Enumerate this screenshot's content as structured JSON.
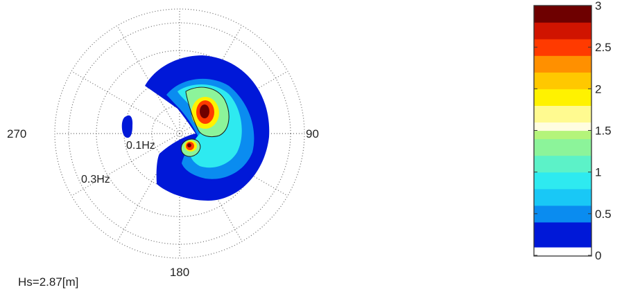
{
  "chart_data": {
    "type": "heatmap",
    "subtype": "polar directional wave spectrum",
    "direction_labels": [
      {
        "deg": 0,
        "text": ""
      },
      {
        "deg": 90,
        "text": "90"
      },
      {
        "deg": 180,
        "text": "180"
      },
      {
        "deg": 270,
        "text": "270"
      }
    ],
    "frequency_ring_labels": [
      {
        "freq": 0.1,
        "text": "0.1Hz"
      },
      {
        "freq": 0.3,
        "text": "0.3Hz"
      }
    ],
    "annotation": "Hs=2.87[m]",
    "grid": true,
    "colorbar": {
      "range": [
        0,
        3
      ],
      "tick_values": [
        0,
        0.5,
        1,
        1.5,
        2,
        2.5,
        3
      ],
      "tick_labels": [
        "0",
        "0.5",
        "1",
        "1.5",
        "2",
        "2.5",
        "3"
      ],
      "bands": [
        {
          "lo": 0.0,
          "hi": 0.1,
          "color": "#ffffff"
        },
        {
          "lo": 0.1,
          "hi": 0.4,
          "color": "#0018d8"
        },
        {
          "lo": 0.4,
          "hi": 0.6,
          "color": "#0a8cf0"
        },
        {
          "lo": 0.6,
          "hi": 0.8,
          "color": "#19c8f6"
        },
        {
          "lo": 0.8,
          "hi": 1.0,
          "color": "#2eeaf0"
        },
        {
          "lo": 1.0,
          "hi": 1.2,
          "color": "#5cf2c8"
        },
        {
          "lo": 1.2,
          "hi": 1.4,
          "color": "#8cf49a"
        },
        {
          "lo": 1.4,
          "hi": 1.5,
          "color": "#b4f47a"
        },
        {
          "lo": 1.5,
          "hi": 1.6,
          "color": "#fffde0"
        },
        {
          "lo": 1.6,
          "hi": 1.8,
          "color": "#fffa90"
        },
        {
          "lo": 1.8,
          "hi": 2.0,
          "color": "#fff200"
        },
        {
          "lo": 2.0,
          "hi": 2.2,
          "color": "#ffc800"
        },
        {
          "lo": 2.2,
          "hi": 2.4,
          "color": "#ff9000"
        },
        {
          "lo": 2.4,
          "hi": 2.6,
          "color": "#ff3a00"
        },
        {
          "lo": 2.6,
          "hi": 2.8,
          "color": "#d01400"
        },
        {
          "lo": 2.8,
          "hi": 3.0,
          "color": "#6e0000"
        }
      ]
    },
    "spectrum_colors": {
      "level_1": "#0018d8",
      "level_2": "#0a8cf0",
      "level_3": "#2eeaf0",
      "level_4": "#8cf49a",
      "level_5": "#fff200",
      "level_6": "#ff3a00",
      "level_7": "#6e0000"
    }
  }
}
